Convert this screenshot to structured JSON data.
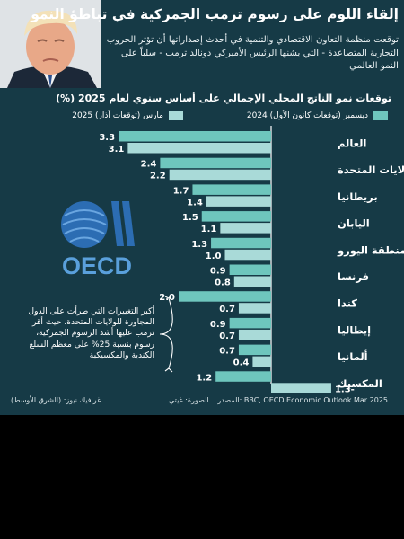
{
  "headline": "إلقاء اللوم على رسوم ترمب الجمركية في تباطؤ النمو",
  "subheadline": "توقعت منظمة التعاون الاقتصادي والتنمية في أحدث إصداراتها أن تؤثر الحروب التجارية المتصاعدة - التي يشنها الرئيس الأميركي دونالد ترمب - سلباً على النمو العالمي",
  "colors": {
    "background": "#163a46",
    "march": "#a9dad8",
    "december": "#6ec6bd",
    "text": "#ffffff"
  },
  "chart_data": {
    "type": "bar",
    "title": "توقعات نمو الناتج المحلي الإجمالي على أساس سنوي لعام 2025 (%)",
    "categories": [
      "العالم",
      "الولايات المتحدة",
      "بريطانيا",
      "اليابان",
      "منطقة اليورو",
      "فرنسا",
      "كندا",
      "إيطاليا",
      "ألمانيا",
      "المكسيك"
    ],
    "series": [
      {
        "name": "مارس (توقعات آذار) 2025",
        "values": [
          3.1,
          2.2,
          1.4,
          1.1,
          1.0,
          0.8,
          0.7,
          0.7,
          0.4,
          -1.3
        ],
        "labels": [
          "3.1",
          "2.2",
          "1.4",
          "1.1",
          "1.0",
          "0.8",
          "0.7",
          "0.7",
          "0.4",
          "1.3-"
        ]
      },
      {
        "name": "ديسمبر (توقعات كانون الأول) 2024",
        "values": [
          3.3,
          2.4,
          1.7,
          1.5,
          1.3,
          0.9,
          2.0,
          0.9,
          0.7,
          1.2
        ],
        "labels": [
          "3.3",
          "2.4",
          "1.7",
          "1.5",
          "1.3",
          "0.9",
          "2.0",
          "0.9",
          "0.7",
          "1.2"
        ]
      }
    ],
    "legend_position": "top",
    "grid": false
  },
  "annotation": "أكبر التغييرات التي طرأت على الدول المجاورة للولايات المتحدة، حيث أقر ترمب عليها أشد الرسوم الجمركية، رسوم بنسبة 25% على معظم السلع الكندية والمكسيكية",
  "logo_text": "OECD",
  "footer": {
    "source": "المصدر: BBC, OECD Economic Outlook Mar 2025",
    "photo_credit": "الصورة: غيتي",
    "graphics": "غرافيك نيوز: (الشرق الأوسط)"
  }
}
